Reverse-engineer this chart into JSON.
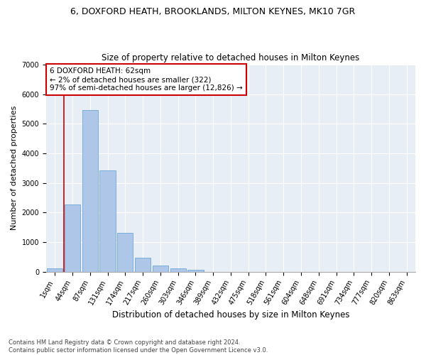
{
  "title1": "6, DOXFORD HEATH, BROOKLANDS, MILTON KEYNES, MK10 7GR",
  "title2": "Size of property relative to detached houses in Milton Keynes",
  "xlabel": "Distribution of detached houses by size in Milton Keynes",
  "ylabel": "Number of detached properties",
  "footer": "Contains HM Land Registry data © Crown copyright and database right 2024.\nContains public sector information licensed under the Open Government Licence v3.0.",
  "categories": [
    "1sqm",
    "44sqm",
    "87sqm",
    "131sqm",
    "174sqm",
    "217sqm",
    "260sqm",
    "303sqm",
    "346sqm",
    "389sqm",
    "432sqm",
    "475sqm",
    "518sqm",
    "561sqm",
    "604sqm",
    "648sqm",
    "691sqm",
    "734sqm",
    "777sqm",
    "820sqm",
    "863sqm"
  ],
  "values": [
    100,
    2270,
    5470,
    3420,
    1300,
    480,
    200,
    100,
    60,
    0,
    0,
    0,
    0,
    0,
    0,
    0,
    0,
    0,
    0,
    0,
    0
  ],
  "bar_color": "#aec6e8",
  "bar_edge_color": "#5a9fd4",
  "vline_color": "#cc0000",
  "annotation_text": "6 DOXFORD HEATH: 62sqm\n← 2% of detached houses are smaller (322)\n97% of semi-detached houses are larger (12,826) →",
  "annotation_box_color": "#ffffff",
  "annotation_box_edgecolor": "#cc0000",
  "ylim": [
    0,
    7000
  ],
  "yticks": [
    0,
    1000,
    2000,
    3000,
    4000,
    5000,
    6000,
    7000
  ],
  "bg_color": "#e8eef5",
  "title1_fontsize": 9,
  "title2_fontsize": 8.5,
  "xlabel_fontsize": 8.5,
  "ylabel_fontsize": 8,
  "tick_fontsize": 7,
  "footer_fontsize": 6,
  "annotation_fontsize": 7.5
}
